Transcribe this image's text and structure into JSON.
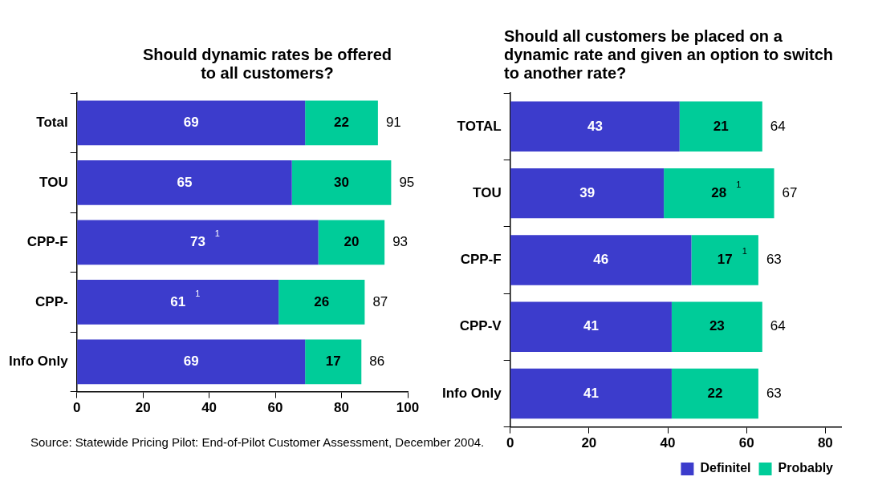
{
  "chart_data": [
    {
      "type": "bar",
      "orientation": "horizontal",
      "stacked": true,
      "title": "Should dynamic rates be offered to all customers?",
      "categories": [
        "Total",
        "TOU",
        "CPP-F",
        "CPP-",
        "Info Only"
      ],
      "series": [
        {
          "color": "#3c3ccc",
          "values": [
            69,
            65,
            73,
            61,
            69
          ],
          "value_labels": [
            "69",
            "65",
            "73$^{1}$",
            "61$^{1}$",
            "69"
          ]
        },
        {
          "color": "#00cc99",
          "values": [
            22,
            30,
            20,
            26,
            17
          ],
          "value_labels": [
            "22",
            "30",
            "20",
            "26",
            "17"
          ]
        }
      ],
      "totals": [
        "91",
        "95",
        "93",
        "87",
        "86"
      ],
      "xlim": [
        0,
        100
      ],
      "xticks": [
        0,
        20,
        40,
        60,
        80,
        100
      ],
      "grid": false,
      "legend": false,
      "annotations": [
        "Source: Statewide Pricing Pilot: End-of-Pilot Customer Assessment, December 2004."
      ]
    },
    {
      "type": "bar",
      "orientation": "horizontal",
      "stacked": true,
      "title": "Should all customers be placed on a dynamic rate and given an option to switch to another rate?",
      "categories": [
        "TOTAL",
        "TOU",
        "CPP-F",
        "CPP-V",
        "Info Only"
      ],
      "series": [
        {
          "name": "Definitel",
          "color": "#3c3ccc",
          "values": [
            43,
            39,
            46,
            41,
            41
          ],
          "value_labels": [
            "43",
            "39",
            "46",
            "41",
            "41"
          ]
        },
        {
          "name": "Probably",
          "color": "#00cc99",
          "values": [
            21,
            28,
            17,
            23,
            22
          ],
          "value_labels": [
            "21",
            "28$^{1}$",
            "17$^{1}$",
            "23",
            "22"
          ]
        }
      ],
      "totals": [
        "64",
        "67",
        "63",
        "64",
        "63"
      ],
      "xlim": [
        0,
        84
      ],
      "xticks": [
        0,
        20,
        40,
        60,
        80
      ],
      "grid": false,
      "legend": "bottom right"
    }
  ]
}
